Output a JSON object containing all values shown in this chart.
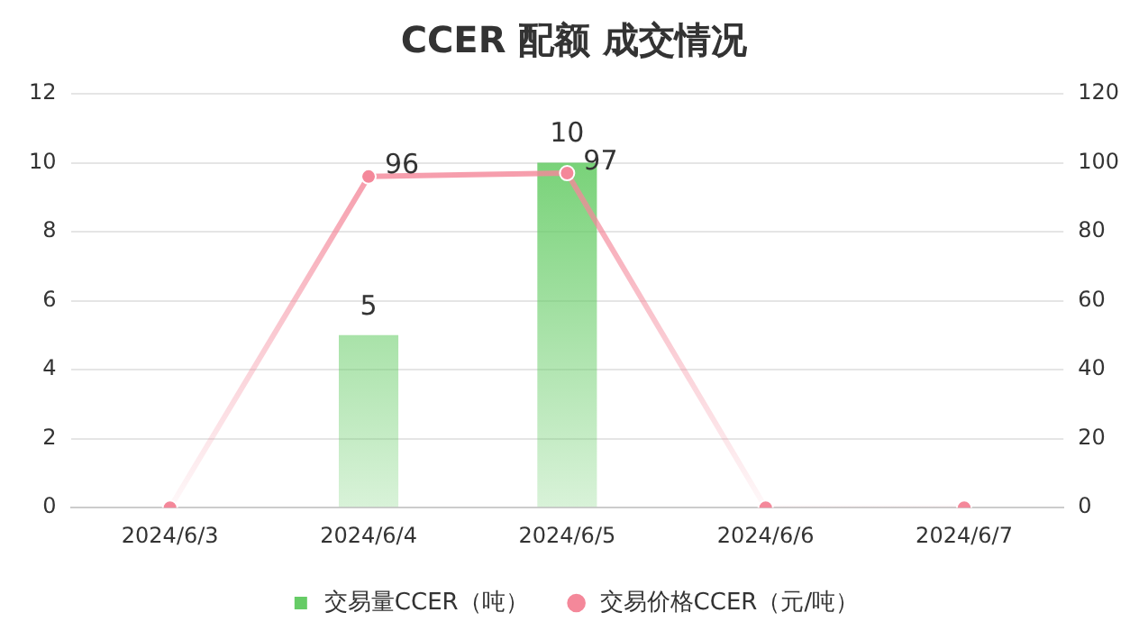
{
  "chart_data": {
    "type": "bar",
    "title": "CCER 配额 成交情况",
    "categories": [
      "2024/6/3",
      "2024/6/4",
      "2024/6/5",
      "2024/6/6",
      "2024/6/7"
    ],
    "series": [
      {
        "name": "交易量CCER（吨）",
        "color": "#66cc66",
        "values": [
          null,
          5,
          10,
          null,
          null
        ],
        "value_labels": [
          null,
          "5",
          "10",
          null,
          null
        ]
      },
      {
        "name": "交易价格CCER（元/吨）",
        "type": "line",
        "axis": "y2",
        "color": "#f4889a",
        "values": [
          0,
          96,
          97,
          0,
          0
        ],
        "value_labels": [
          null,
          "96",
          "97",
          null,
          null
        ]
      }
    ],
    "ylim": [
      0,
      12
    ],
    "yticks": [
      0,
      2,
      4,
      6,
      8,
      10,
      12
    ],
    "y2lim": [
      0,
      120
    ],
    "y2ticks": [
      0,
      20,
      40,
      60,
      80,
      100,
      120
    ],
    "grid": "y",
    "legend": "bottom",
    "marker": "circle"
  }
}
